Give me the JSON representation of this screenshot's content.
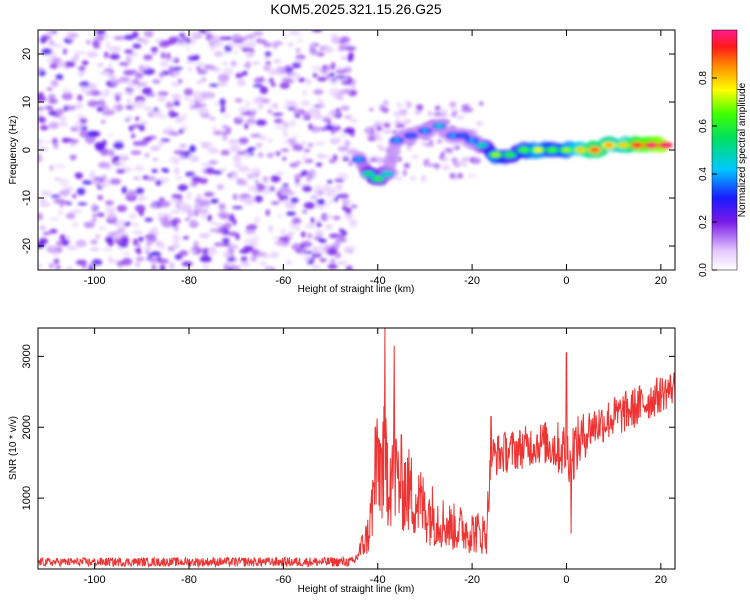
{
  "title": "KOM5.2025.321.15.26.G25",
  "chart_data": [
    {
      "type": "heatmap",
      "name": "spectrogram",
      "xlabel": "Height of straight line (km)",
      "ylabel": "Frequency (Hz)",
      "xlim": [
        -112,
        23
      ],
      "ylim": [
        -25,
        25
      ],
      "xticks": [
        -100,
        -80,
        -60,
        -40,
        -20,
        0,
        20
      ],
      "yticks": [
        -20,
        -10,
        0,
        10,
        20
      ],
      "colorbar": {
        "label": "Normalized spectral amplitude",
        "range": [
          0,
          1
        ],
        "ticks": [
          "0.0",
          "0.2",
          "0.4",
          "0.6",
          "0.8"
        ]
      },
      "noise_region": {
        "x": [
          -112,
          -45
        ],
        "y": [
          -25,
          25
        ],
        "amplitude": [
          0.05,
          0.25
        ]
      },
      "signal_ridge": [
        {
          "x": -44,
          "y": -2,
          "amp": 0.3
        },
        {
          "x": -42,
          "y": -5,
          "amp": 0.45
        },
        {
          "x": -40,
          "y": -6,
          "amp": 0.5
        },
        {
          "x": -38,
          "y": -5,
          "amp": 0.4
        },
        {
          "x": -36,
          "y": 2,
          "amp": 0.3
        },
        {
          "x": -33,
          "y": 3,
          "amp": 0.25
        },
        {
          "x": -30,
          "y": 4,
          "amp": 0.3
        },
        {
          "x": -27,
          "y": 5,
          "amp": 0.35
        },
        {
          "x": -24,
          "y": 3,
          "amp": 0.3
        },
        {
          "x": -22,
          "y": 3,
          "amp": 0.25
        },
        {
          "x": -20,
          "y": 2,
          "amp": 0.3
        },
        {
          "x": -18,
          "y": 1,
          "amp": 0.4
        },
        {
          "x": -15,
          "y": -1,
          "amp": 0.6
        },
        {
          "x": -12,
          "y": -1,
          "amp": 0.5
        },
        {
          "x": -9,
          "y": 0,
          "amp": 0.55
        },
        {
          "x": -6,
          "y": 0,
          "amp": 0.65
        },
        {
          "x": -3,
          "y": 0,
          "amp": 0.55
        },
        {
          "x": 0,
          "y": 0,
          "amp": 0.6
        },
        {
          "x": 3,
          "y": 0,
          "amp": 0.7
        },
        {
          "x": 6,
          "y": 0,
          "amp": 0.8
        },
        {
          "x": 9,
          "y": 1,
          "amp": 0.75
        },
        {
          "x": 12,
          "y": 1,
          "amp": 0.7
        },
        {
          "x": 15,
          "y": 1,
          "amp": 0.85
        },
        {
          "x": 18,
          "y": 1,
          "amp": 0.9
        },
        {
          "x": 21,
          "y": 1,
          "amp": 0.95
        }
      ]
    },
    {
      "type": "line",
      "name": "snr",
      "xlabel": "Height of straight line (km)",
      "ylabel": "SNR (10 * v/v)",
      "xlim": [
        -112,
        23
      ],
      "ylim": [
        0,
        3400
      ],
      "xticks": [
        -100,
        -80,
        -60,
        -40,
        -20,
        0,
        20
      ],
      "yticks": [
        1000,
        2000,
        3000
      ],
      "color": "#ee3333",
      "envelope": [
        {
          "x": -112,
          "base": 80,
          "amp": 120
        },
        {
          "x": -45,
          "base": 80,
          "amp": 140
        },
        {
          "x": -42,
          "base": 400,
          "amp": 600
        },
        {
          "x": -40,
          "base": 1200,
          "amp": 1600
        },
        {
          "x": -38,
          "base": 1200,
          "amp": 1800
        },
        {
          "x": -35,
          "base": 1000,
          "amp": 1400
        },
        {
          "x": -30,
          "base": 700,
          "amp": 1000
        },
        {
          "x": -25,
          "base": 500,
          "amp": 700
        },
        {
          "x": -17,
          "base": 400,
          "amp": 600
        },
        {
          "x": -16,
          "base": 1500,
          "amp": 600
        },
        {
          "x": -5,
          "base": 1700,
          "amp": 600
        },
        {
          "x": 1,
          "base": 1500,
          "amp": 900
        },
        {
          "x": 5,
          "base": 1900,
          "amp": 600
        },
        {
          "x": 15,
          "base": 2200,
          "amp": 600
        },
        {
          "x": 23,
          "base": 2500,
          "amp": 500
        }
      ],
      "peaks": [
        {
          "x": -38.5,
          "y": 3400
        },
        {
          "x": -36.5,
          "y": 3150
        },
        {
          "x": -40.5,
          "y": 2000
        },
        {
          "x": 0,
          "y": 3050
        },
        {
          "x": 1,
          "y": 500
        },
        {
          "x": -16,
          "y": 2150
        }
      ]
    }
  ]
}
